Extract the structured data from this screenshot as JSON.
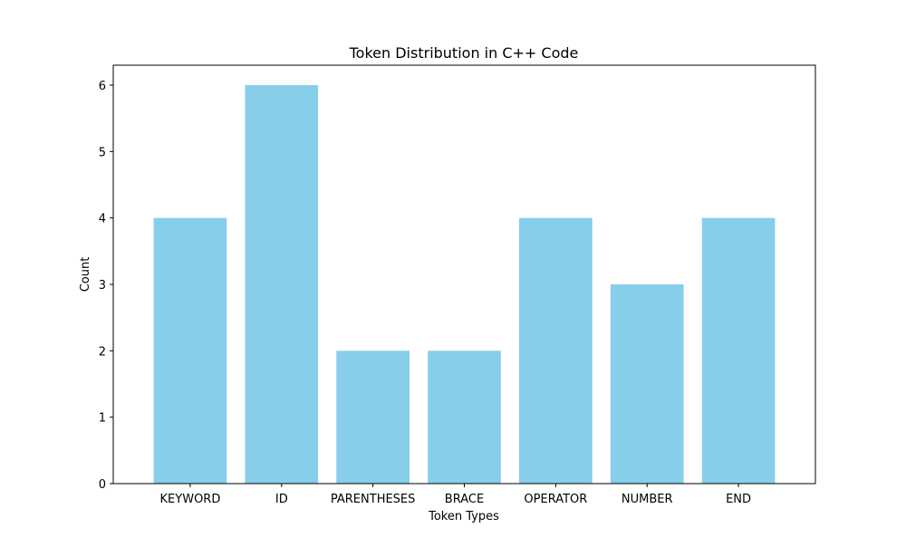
{
  "chart_data": {
    "type": "bar",
    "title": "Token Distribution in C++ Code",
    "xlabel": "Token Types",
    "ylabel": "Count",
    "categories": [
      "KEYWORD",
      "ID",
      "PARENTHESES",
      "BRACE",
      "OPERATOR",
      "NUMBER",
      "END"
    ],
    "values": [
      4,
      6,
      2,
      2,
      4,
      3,
      4
    ],
    "ylim": [
      0,
      6.3
    ],
    "yticks": [
      0,
      1,
      2,
      3,
      4,
      5,
      6
    ],
    "grid": false,
    "legend": "none",
    "bar_color": "#87ceeb"
  }
}
